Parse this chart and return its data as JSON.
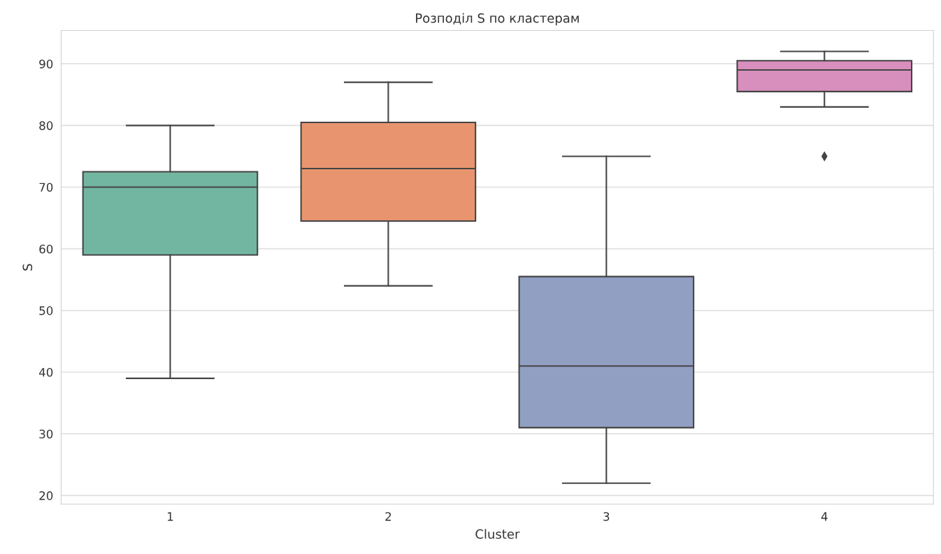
{
  "chart_data": {
    "type": "box",
    "title": "Розподіл S по кластерам",
    "xlabel": "Cluster",
    "ylabel": "S",
    "categories": [
      "1",
      "2",
      "3",
      "4"
    ],
    "colors": [
      "#72b6a1",
      "#e8956f",
      "#919fc3",
      "#d98fbd"
    ],
    "boxes": [
      {
        "low": 39,
        "q1": 59,
        "median": 70,
        "q3": 72.5,
        "high": 80
      },
      {
        "low": 54,
        "q1": 64.5,
        "median": 73,
        "q3": 80.5,
        "high": 87
      },
      {
        "low": 22,
        "q1": 31,
        "median": 41,
        "q3": 55.5,
        "high": 75
      },
      {
        "low": 83,
        "q1": 85.5,
        "median": 89,
        "q3": 90.5,
        "high": 92,
        "outliers": [
          75
        ]
      }
    ],
    "ylim": [
      18.6,
      95.4
    ],
    "yticks": [
      20,
      30,
      40,
      50,
      60,
      70,
      80,
      90
    ],
    "grid": "y",
    "marker": "diamond"
  }
}
